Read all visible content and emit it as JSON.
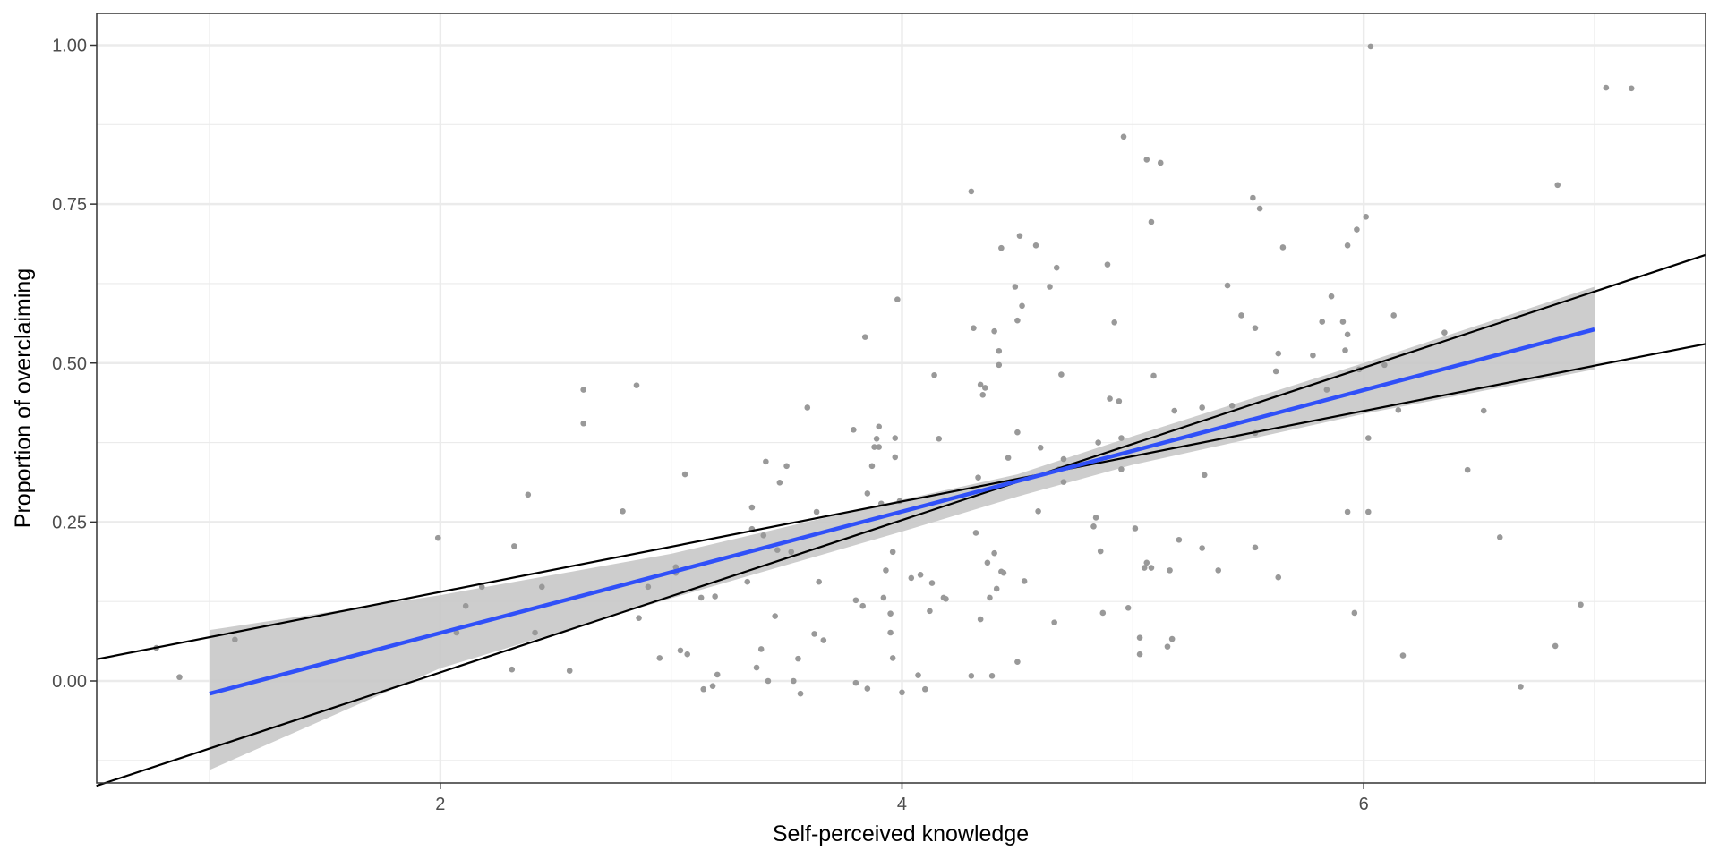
{
  "chart_data": {
    "type": "scatter",
    "title": "",
    "xlabel": "Self-perceived knowledge",
    "ylabel": "Proportion of overclaiming",
    "xlim": [
      0.5,
      7.48
    ],
    "ylim": [
      -0.16,
      1.05
    ],
    "x_ticks": [
      2,
      4,
      6
    ],
    "x_tick_labels": [
      "2",
      "4",
      "6"
    ],
    "x_minor_gridlines": [
      1,
      3,
      5,
      7
    ],
    "y_ticks": [
      0.0,
      0.25,
      0.5,
      0.75,
      1.0
    ],
    "y_tick_labels": [
      "0.00",
      "0.25",
      "0.50",
      "0.75",
      "1.00"
    ],
    "y_minor_gridlines": [
      -0.125,
      0.125,
      0.375,
      0.625,
      0.875
    ],
    "grid": true,
    "legend": "none",
    "colors": {
      "points": "#999999",
      "fit_line": "#3050f8",
      "ci_band": "#c8c8c8",
      "ref_lines": "#000000",
      "grid": "#ebebeb",
      "panel_border": "#333333"
    },
    "series": [
      {
        "name": "observations",
        "type": "scatter",
        "points": [
          [
            0.77,
            0.052
          ],
          [
            0.87,
            0.006
          ],
          [
            1.11,
            0.065
          ],
          [
            1.99,
            0.225
          ],
          [
            2.07,
            0.076
          ],
          [
            2.11,
            0.118
          ],
          [
            2.18,
            0.148
          ],
          [
            2.31,
            0.018
          ],
          [
            2.32,
            0.212
          ],
          [
            2.38,
            0.293
          ],
          [
            2.41,
            0.076
          ],
          [
            2.44,
            0.148
          ],
          [
            2.56,
            0.016
          ],
          [
            2.62,
            0.458
          ],
          [
            2.62,
            0.405
          ],
          [
            2.79,
            0.267
          ],
          [
            2.85,
            0.465
          ],
          [
            2.86,
            0.099
          ],
          [
            2.9,
            0.148
          ],
          [
            2.95,
            0.036
          ],
          [
            3.02,
            0.179
          ],
          [
            3.02,
            0.17
          ],
          [
            3.04,
            0.048
          ],
          [
            3.06,
            0.325
          ],
          [
            3.07,
            0.042
          ],
          [
            3.13,
            0.131
          ],
          [
            3.14,
            -0.013
          ],
          [
            3.18,
            -0.008
          ],
          [
            3.19,
            0.133
          ],
          [
            3.2,
            0.01
          ],
          [
            3.33,
            0.156
          ],
          [
            3.35,
            0.273
          ],
          [
            3.35,
            0.239
          ],
          [
            3.37,
            0.021
          ],
          [
            3.39,
            0.05
          ],
          [
            3.4,
            0.229
          ],
          [
            3.41,
            0.345
          ],
          [
            3.42,
            0.0
          ],
          [
            3.45,
            0.102
          ],
          [
            3.46,
            0.206
          ],
          [
            3.47,
            0.312
          ],
          [
            3.5,
            0.338
          ],
          [
            3.52,
            0.203
          ],
          [
            3.53,
            0.0
          ],
          [
            3.55,
            0.035
          ],
          [
            3.56,
            -0.02
          ],
          [
            3.59,
            0.43
          ],
          [
            3.62,
            0.074
          ],
          [
            3.63,
            0.266
          ],
          [
            3.64,
            0.156
          ],
          [
            3.66,
            0.064
          ],
          [
            3.79,
            0.395
          ],
          [
            3.8,
            0.127
          ],
          [
            3.8,
            -0.003
          ],
          [
            3.83,
            0.118
          ],
          [
            3.84,
            0.541
          ],
          [
            3.85,
            -0.012
          ],
          [
            3.85,
            0.295
          ],
          [
            3.87,
            0.338
          ],
          [
            3.88,
            0.368
          ],
          [
            3.89,
            0.381
          ],
          [
            3.9,
            0.368
          ],
          [
            3.9,
            0.4
          ],
          [
            3.91,
            0.279
          ],
          [
            3.92,
            0.131
          ],
          [
            3.93,
            0.174
          ],
          [
            3.95,
            0.106
          ],
          [
            3.95,
            0.076
          ],
          [
            3.96,
            0.203
          ],
          [
            3.96,
            0.036
          ],
          [
            3.97,
            0.382
          ],
          [
            3.97,
            0.352
          ],
          [
            3.98,
            0.6
          ],
          [
            3.99,
            0.283
          ],
          [
            4.0,
            -0.018
          ],
          [
            4.04,
            0.162
          ],
          [
            4.07,
            0.009
          ],
          [
            4.08,
            0.167
          ],
          [
            4.1,
            -0.013
          ],
          [
            4.12,
            0.11
          ],
          [
            4.13,
            0.154
          ],
          [
            4.14,
            0.481
          ],
          [
            4.16,
            0.381
          ],
          [
            4.18,
            0.131
          ],
          [
            4.19,
            0.129
          ],
          [
            4.3,
            0.77
          ],
          [
            4.3,
            0.008
          ],
          [
            4.31,
            0.555
          ],
          [
            4.32,
            0.233
          ],
          [
            4.33,
            0.32
          ],
          [
            4.34,
            0.097
          ],
          [
            4.34,
            0.466
          ],
          [
            4.35,
            0.45
          ],
          [
            4.36,
            0.461
          ],
          [
            4.37,
            0.186
          ],
          [
            4.38,
            0.131
          ],
          [
            4.39,
            0.008
          ],
          [
            4.4,
            0.201
          ],
          [
            4.4,
            0.55
          ],
          [
            4.41,
            0.145
          ],
          [
            4.42,
            0.497
          ],
          [
            4.42,
            0.519
          ],
          [
            4.43,
            0.681
          ],
          [
            4.43,
            0.172
          ],
          [
            4.44,
            0.17
          ],
          [
            4.46,
            0.351
          ],
          [
            4.49,
            0.62
          ],
          [
            4.5,
            0.391
          ],
          [
            4.5,
            0.03
          ],
          [
            4.5,
            0.567
          ],
          [
            4.51,
            0.7
          ],
          [
            4.52,
            0.59
          ],
          [
            4.53,
            0.157
          ],
          [
            4.58,
            0.685
          ],
          [
            4.59,
            0.267
          ],
          [
            4.6,
            0.367
          ],
          [
            4.64,
            0.62
          ],
          [
            4.66,
            0.092
          ],
          [
            4.67,
            0.65
          ],
          [
            4.68,
            0.333
          ],
          [
            4.69,
            0.482
          ],
          [
            4.7,
            0.349
          ],
          [
            4.7,
            0.313
          ],
          [
            4.83,
            0.243
          ],
          [
            4.84,
            0.257
          ],
          [
            4.85,
            0.375
          ],
          [
            4.86,
            0.204
          ],
          [
            4.87,
            0.107
          ],
          [
            4.89,
            0.655
          ],
          [
            4.9,
            0.444
          ],
          [
            4.92,
            0.564
          ],
          [
            4.94,
            0.44
          ],
          [
            4.95,
            0.333
          ],
          [
            4.95,
            0.382
          ],
          [
            4.96,
            0.856
          ],
          [
            4.98,
            0.115
          ],
          [
            5.01,
            0.24
          ],
          [
            5.03,
            0.068
          ],
          [
            5.03,
            0.042
          ],
          [
            5.05,
            0.178
          ],
          [
            5.06,
            0.82
          ],
          [
            5.06,
            0.186
          ],
          [
            5.08,
            0.178
          ],
          [
            5.08,
            0.722
          ],
          [
            5.09,
            0.48
          ],
          [
            5.12,
            0.815
          ],
          [
            5.15,
            0.054
          ],
          [
            5.16,
            0.174
          ],
          [
            5.17,
            0.066
          ],
          [
            5.18,
            0.425
          ],
          [
            5.2,
            0.222
          ],
          [
            5.3,
            0.209
          ],
          [
            5.3,
            0.43
          ],
          [
            5.31,
            0.324
          ],
          [
            5.37,
            0.174
          ],
          [
            5.41,
            0.622
          ],
          [
            5.43,
            0.433
          ],
          [
            5.47,
            0.575
          ],
          [
            5.52,
            0.76
          ],
          [
            5.53,
            0.555
          ],
          [
            5.53,
            0.39
          ],
          [
            5.53,
            0.21
          ],
          [
            5.55,
            0.743
          ],
          [
            5.62,
            0.487
          ],
          [
            5.63,
            0.515
          ],
          [
            5.63,
            0.163
          ],
          [
            5.65,
            0.682
          ],
          [
            5.78,
            0.512
          ],
          [
            5.82,
            0.565
          ],
          [
            5.84,
            0.458
          ],
          [
            5.86,
            0.605
          ],
          [
            5.91,
            0.565
          ],
          [
            5.92,
            0.52
          ],
          [
            5.93,
            0.685
          ],
          [
            5.93,
            0.545
          ],
          [
            5.93,
            0.266
          ],
          [
            5.96,
            0.107
          ],
          [
            5.97,
            0.71
          ],
          [
            5.98,
            0.49
          ],
          [
            6.01,
            0.73
          ],
          [
            6.02,
            0.382
          ],
          [
            6.02,
            0.266
          ],
          [
            6.03,
            0.998
          ],
          [
            6.09,
            0.497
          ],
          [
            6.13,
            0.575
          ],
          [
            6.15,
            0.426
          ],
          [
            6.17,
            0.04
          ],
          [
            6.35,
            0.548
          ],
          [
            6.45,
            0.332
          ],
          [
            6.52,
            0.425
          ],
          [
            6.59,
            0.226
          ],
          [
            6.68,
            -0.009
          ],
          [
            6.83,
            0.055
          ],
          [
            6.84,
            0.78
          ],
          [
            6.94,
            0.12
          ],
          [
            7.05,
            0.933
          ],
          [
            7.16,
            0.932
          ]
        ]
      },
      {
        "name": "linear fit",
        "type": "line",
        "x": [
          1,
          7
        ],
        "y": [
          -0.02,
          0.553
        ]
      },
      {
        "name": "95% CI",
        "type": "area",
        "x": [
          1,
          2,
          3,
          4,
          4.5,
          5,
          6,
          7
        ],
        "upper": [
          0.08,
          0.135,
          0.2,
          0.285,
          0.325,
          0.385,
          0.5,
          0.62
        ],
        "lower": [
          -0.14,
          0.02,
          0.13,
          0.235,
          0.29,
          0.34,
          0.42,
          0.49
        ]
      },
      {
        "name": "reference line A",
        "type": "line",
        "x": [
          0.51,
          7.48
        ],
        "y": [
          -0.165,
          0.67
        ]
      },
      {
        "name": "reference line B",
        "type": "line",
        "x": [
          0.51,
          7.48
        ],
        "y": [
          0.034,
          0.53
        ]
      }
    ]
  }
}
